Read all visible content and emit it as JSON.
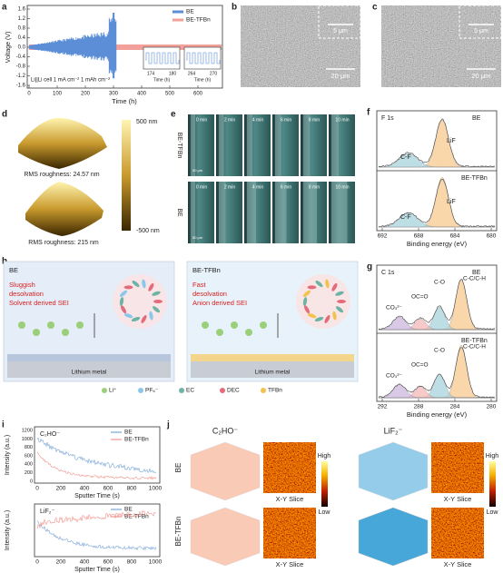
{
  "a": {
    "letter": "a",
    "y_label": "Voltage (V)",
    "x_label": "Time (h)",
    "yticks": [
      "1.6",
      "1.2",
      "0.8",
      "0.4",
      "0.0",
      "-0.4",
      "-0.8",
      "-1.2",
      "-1.6"
    ],
    "xticks": [
      "0",
      "100",
      "200",
      "300",
      "400",
      "500",
      "600"
    ],
    "legend": [
      "BE",
      "BE-TFBn"
    ],
    "note": "Li||Li cell 1 mA cm⁻² 1 mAh cm⁻²",
    "insets": [
      {
        "ticks": [
          "174",
          "180"
        ],
        "x_label": "Time (h)"
      },
      {
        "ticks": [
          "264",
          "270"
        ],
        "x_label": "Time (h)"
      }
    ]
  },
  "b": {
    "letter": "b",
    "scale_small": "5 μm",
    "scale_large": "20 μm"
  },
  "c": {
    "letter": "c",
    "scale_small": "5 μm",
    "scale_large": "20 μm"
  },
  "d": {
    "letter": "d",
    "rms_top": "RMS roughness: 24.57 nm",
    "rms_bottom": "RMS roughness: 215 nm",
    "bar_max": "500 nm",
    "bar_min": "-500 nm"
  },
  "e": {
    "letter": "e",
    "times": [
      "0 min",
      "2 min",
      "4 min",
      "6 min",
      "8 min",
      "10 min"
    ],
    "rows": [
      "BE-TFBn",
      "BE"
    ],
    "scale": "50 μm"
  },
  "f": {
    "letter": "f",
    "element": "F 1s",
    "top_label": "BE",
    "bottom_label": "BE-TFBn",
    "peaks": [
      "LiF",
      "C-F"
    ],
    "xticks": [
      "692",
      "688",
      "684",
      "680"
    ],
    "x_label": "Binding energy (eV)"
  },
  "g": {
    "letter": "g",
    "element": "C 1s",
    "top_label": "BE",
    "bottom_label": "BE-TFBn",
    "peaks": [
      "CO₃²⁻",
      "OC=O",
      "C-O",
      "C-C/C-H"
    ],
    "xticks": [
      "292",
      "288",
      "284",
      "280"
    ],
    "x_label": "Binding energy (eV)"
  },
  "h": {
    "letter": "h",
    "left": {
      "title": "BE",
      "desc": [
        "Sluggish",
        "desolvation",
        "Solvent derived SEI"
      ]
    },
    "right": {
      "title": "BE-TFBn",
      "desc": [
        "Fast",
        "desolvation",
        "Anion derived SEI"
      ]
    },
    "metal": "Lithium metal",
    "legend": [
      "Li⁺",
      "PF₆⁻",
      "EC",
      "DEC",
      "TFBn"
    ]
  },
  "i": {
    "letter": "i",
    "y_label": "Intensity (a.u.)",
    "x_label": "Sputter Time (s)",
    "xticks": [
      "0",
      "200",
      "400",
      "600",
      "800",
      "1000"
    ],
    "yticks": [
      "1200",
      "1000",
      "800",
      "600",
      "400",
      "200",
      "0"
    ],
    "top": {
      "species": "C₂HO⁻",
      "legend": [
        "BE",
        "BE-TFBn"
      ]
    },
    "bottom": {
      "species": "LiF₂⁻",
      "legend": [
        "BE",
        "BE-TFBn"
      ]
    }
  },
  "j": {
    "letter": "j",
    "species": [
      "C₂HO⁻",
      "LiF₂⁻"
    ],
    "rows": [
      "BE",
      "BE-TFBn"
    ],
    "slice": "X-Y Slice",
    "high": "High",
    "low": "Low"
  }
}
